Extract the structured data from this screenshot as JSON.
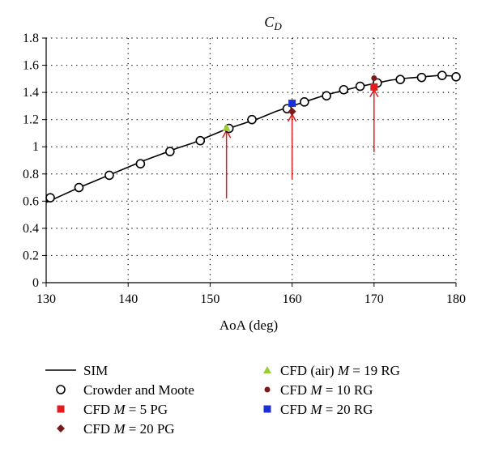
{
  "chart_data": {
    "type": "line",
    "title": "C",
    "title_sub": "D",
    "xlabel": "AoA (deg)",
    "ylabel": "",
    "xlim": [
      130,
      180
    ],
    "ylim": [
      0,
      1.8
    ],
    "x_ticks": [
      "130",
      "140",
      "150",
      "160",
      "170",
      "180"
    ],
    "y_ticks": [
      "0",
      "0.2",
      "0.4",
      "0.6",
      "0.8",
      "1",
      "1.2",
      "1.4",
      "1.6",
      "1.8"
    ],
    "grid": "dotted",
    "series": [
      {
        "name": "SIM",
        "style": "line",
        "color": "#000000",
        "x": [
          130,
          132,
          134,
          136,
          138,
          140,
          142,
          144,
          146,
          148,
          150,
          152,
          154,
          156,
          158,
          160,
          162,
          164,
          166,
          168,
          170,
          172,
          174,
          176,
          178,
          180
        ],
        "y": [
          0.59,
          0.645,
          0.7,
          0.75,
          0.8,
          0.85,
          0.9,
          0.945,
          0.99,
          1.03,
          1.08,
          1.13,
          1.17,
          1.21,
          1.26,
          1.3,
          1.34,
          1.38,
          1.41,
          1.44,
          1.465,
          1.49,
          1.505,
          1.515,
          1.525,
          1.52
        ]
      },
      {
        "name": "Crowder and Moote",
        "style": "open-circle",
        "color": "#000000",
        "x": [
          130.5,
          134,
          137.7,
          141.5,
          145.1,
          148.8,
          152.3,
          155.1,
          159.4,
          161.5,
          164.2,
          166.3,
          168.3,
          170.4,
          173.2,
          175.8,
          178.3,
          180
        ],
        "y": [
          0.625,
          0.7,
          0.79,
          0.875,
          0.965,
          1.045,
          1.135,
          1.2,
          1.28,
          1.33,
          1.375,
          1.42,
          1.445,
          1.47,
          1.495,
          1.51,
          1.525,
          1.515
        ]
      },
      {
        "name": "CFD M = 5 PG",
        "style": "square",
        "color": "#e31d1d",
        "x": [
          170
        ],
        "y": [
          1.44
        ]
      },
      {
        "name": "CFD M = 20 PG",
        "style": "diamond",
        "color": "#7a1a1a",
        "x": [
          160
        ],
        "y": [
          1.26
        ]
      },
      {
        "name": "CFD (air) M = 19 RG",
        "style": "triangle",
        "color": "#9acd32",
        "x": [
          152
        ],
        "y": [
          1.14
        ]
      },
      {
        "name": "CFD M = 10 RG",
        "style": "dot",
        "color": "#7a1a1a",
        "x": [
          170
        ],
        "y": [
          1.505
        ]
      },
      {
        "name": "CFD M = 20 RG",
        "style": "square",
        "color": "#1c2fd4",
        "x": [
          160
        ],
        "y": [
          1.32
        ]
      }
    ],
    "annotations": {
      "arrow_color": "#e31d1d",
      "arrows": [
        {
          "x": 152,
          "y_from": 0.62,
          "y_to": 1.12
        },
        {
          "x": 160,
          "y_from": 0.76,
          "y_to": 1.24
        },
        {
          "x": 170,
          "y_from": 0.96,
          "y_to": 1.42
        }
      ]
    },
    "legend": {
      "placement": "bottom",
      "left": [
        {
          "marker": "line",
          "color": "#000000",
          "parts": [
            {
              "t": "SIM",
              "i": false
            }
          ]
        },
        {
          "marker": "open-circle",
          "color": "#000000",
          "parts": [
            {
              "t": "Crowder and Moote",
              "i": false
            }
          ]
        },
        {
          "marker": "square",
          "color": "#e31d1d",
          "parts": [
            {
              "t": "CFD ",
              "i": false
            },
            {
              "t": "M",
              "i": true
            },
            {
              "t": " = 5 PG",
              "i": false
            }
          ]
        },
        {
          "marker": "diamond",
          "color": "#7a1a1a",
          "parts": [
            {
              "t": "CFD ",
              "i": false
            },
            {
              "t": "M",
              "i": true
            },
            {
              "t": " = 20 PG",
              "i": false
            }
          ]
        }
      ],
      "right": [
        {
          "marker": "triangle",
          "color": "#9acd32",
          "parts": [
            {
              "t": "CFD (air) ",
              "i": false
            },
            {
              "t": "M",
              "i": true
            },
            {
              "t": " = 19 RG",
              "i": false
            }
          ]
        },
        {
          "marker": "dot",
          "color": "#7a1a1a",
          "parts": [
            {
              "t": "CFD ",
              "i": false
            },
            {
              "t": "M",
              "i": true
            },
            {
              "t": " = 10 RG",
              "i": false
            }
          ]
        },
        {
          "marker": "square",
          "color": "#1c2fd4",
          "parts": [
            {
              "t": "CFD ",
              "i": false
            },
            {
              "t": "M",
              "i": true
            },
            {
              "t": " = 20 RG",
              "i": false
            }
          ]
        }
      ]
    }
  }
}
